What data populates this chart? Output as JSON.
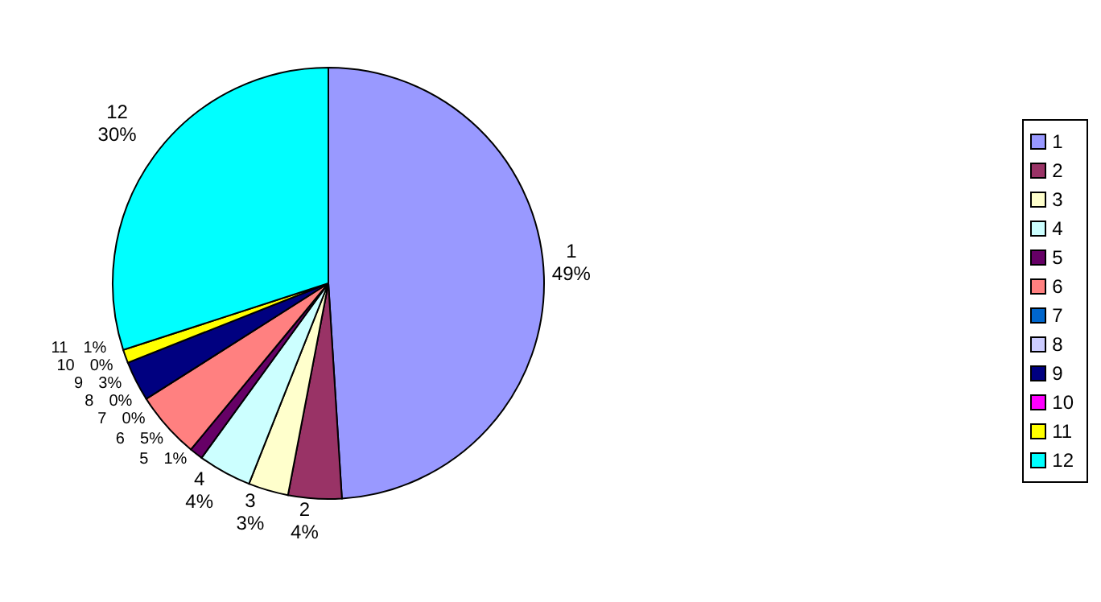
{
  "chart_data": {
    "type": "pie",
    "categories": [
      "1",
      "2",
      "3",
      "4",
      "5",
      "6",
      "7",
      "8",
      "9",
      "10",
      "11",
      "12"
    ],
    "values": [
      49,
      4,
      3,
      4,
      1,
      5,
      0,
      0,
      3,
      0,
      1,
      30
    ],
    "value_labels": [
      "49%",
      "4%",
      "3%",
      "4%",
      "1%",
      "5%",
      "0%",
      "0%",
      "3%",
      "0%",
      "1%",
      "30%"
    ],
    "colors": [
      "#9999ff",
      "#993366",
      "#ffffcc",
      "#ccffff",
      "#660066",
      "#ff8080",
      "#0066cc",
      "#ccccff",
      "#000080",
      "#ff00ff",
      "#ffff00",
      "#00ffff"
    ],
    "legend": "right"
  }
}
